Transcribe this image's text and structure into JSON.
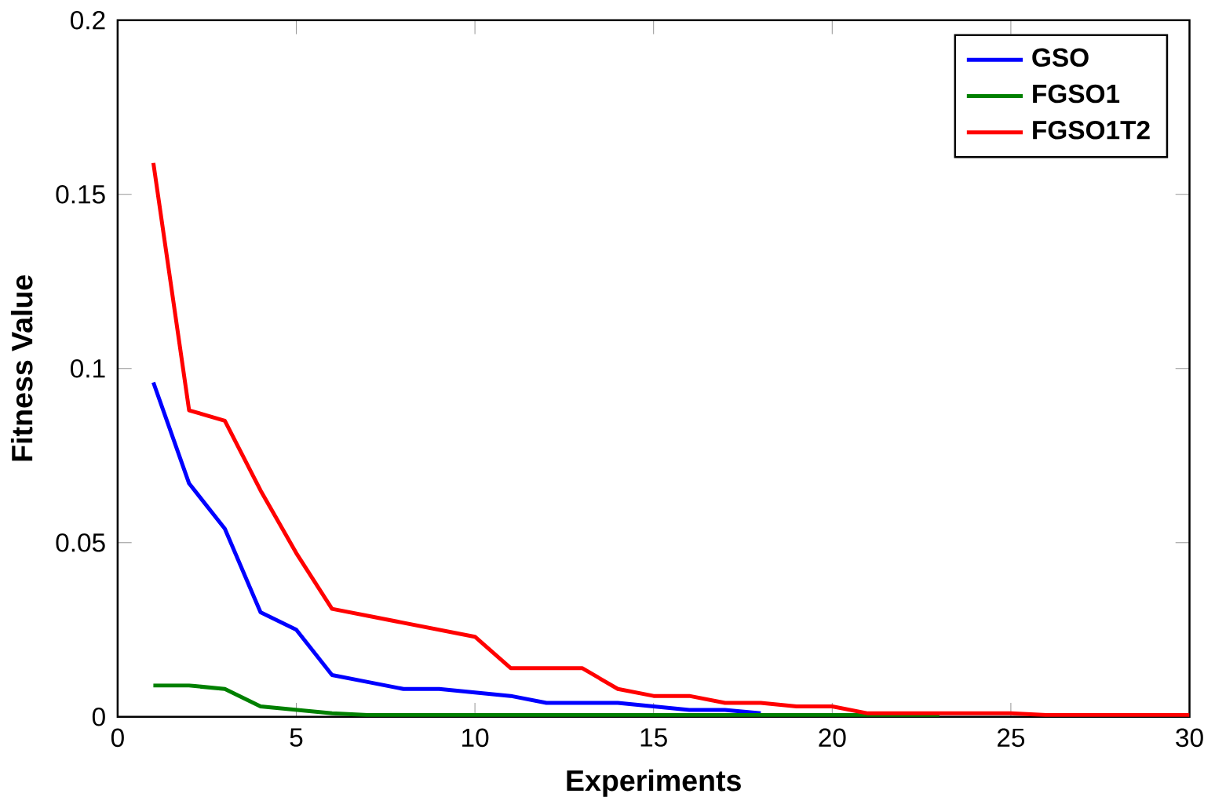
{
  "chart_data": {
    "type": "line",
    "xlabel": "Experiments",
    "ylabel": "Fitness Value",
    "x": [
      1,
      2,
      3,
      4,
      5,
      6,
      7,
      8,
      9,
      10,
      11,
      12,
      13,
      14,
      15,
      16,
      17,
      18,
      19,
      20,
      21,
      22,
      23,
      24,
      25,
      26,
      27,
      28,
      29,
      30
    ],
    "series": [
      {
        "name": "GSO",
        "color": "#0000ff",
        "values": [
          0.096,
          0.067,
          0.054,
          0.03,
          0.025,
          0.012,
          0.01,
          0.008,
          0.008,
          0.007,
          0.006,
          0.004,
          0.004,
          0.004,
          0.003,
          0.002,
          0.002,
          0.001,
          null,
          null,
          null,
          null,
          null,
          null,
          null,
          null,
          null,
          null,
          null,
          null
        ]
      },
      {
        "name": "FGSO1",
        "color": "#008000",
        "values": [
          0.009,
          0.009,
          0.008,
          0.003,
          0.002,
          0.001,
          0.0005,
          0.0005,
          0.0005,
          0.0005,
          0.0005,
          0.0005,
          0.0005,
          0.0005,
          0.0005,
          0.0005,
          0.0005,
          0.0005,
          0.0005,
          0.0005,
          0.0005,
          0.0005,
          0.0005,
          null,
          null,
          null,
          null,
          null,
          null,
          null
        ]
      },
      {
        "name": "FGSO1T2",
        "color": "#ff0000",
        "values": [
          0.159,
          0.088,
          0.085,
          0.065,
          0.047,
          0.031,
          0.029,
          0.027,
          0.025,
          0.023,
          0.014,
          0.014,
          0.014,
          0.008,
          0.006,
          0.006,
          0.004,
          0.004,
          0.003,
          0.003,
          0.001,
          0.001,
          0.001,
          0.001,
          0.001,
          0.0005,
          0.0005,
          0.0005,
          0.0005,
          0.0005
        ]
      }
    ],
    "xlim": [
      0,
      30
    ],
    "ylim": [
      0,
      0.2
    ],
    "xticks": [
      0,
      5,
      10,
      15,
      20,
      25,
      30
    ],
    "yticks": [
      0,
      0.05,
      0.1,
      0.15,
      0.2
    ],
    "legend": "top right",
    "grid": false,
    "marker": "none",
    "line_style": "solid"
  }
}
